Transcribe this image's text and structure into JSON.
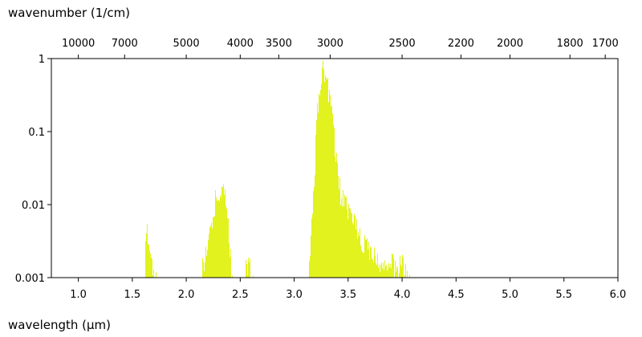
{
  "chart_data": {
    "type": "bar",
    "x_axis": {
      "label": "wavelength (µm)",
      "range": [
        0.75,
        6.0
      ],
      "ticks": [
        1.0,
        1.5,
        2.0,
        2.5,
        3.0,
        3.5,
        4.0,
        4.5,
        5.0,
        5.5,
        6.0
      ],
      "tick_labels": [
        "1.0",
        "1.5",
        "2.0",
        "2.5",
        "3.0",
        "3.5",
        "4.0",
        "4.5",
        "5.0",
        "5.5",
        "6.0"
      ]
    },
    "x2_axis": {
      "label": "wavenumber (1/cm)",
      "scale": "reciprocal",
      "ticks": [
        10000,
        7000,
        5000,
        4000,
        3500,
        3000,
        2500,
        2200,
        2000,
        1800,
        1700
      ],
      "tick_labels": [
        "10000",
        "7000",
        "5000",
        "4000",
        "3500",
        "3000",
        "2500",
        "2200",
        "2000",
        "1800",
        "1700"
      ]
    },
    "y_axis": {
      "scale": "log",
      "range": [
        0.001,
        1
      ],
      "ticks": [
        0.001,
        0.01,
        0.1,
        1
      ],
      "tick_labels": [
        "0.001",
        "0.01",
        "0.1",
        "1"
      ]
    },
    "colors": {
      "bars": "#e2f21e",
      "axes": "#000000"
    },
    "grid": false,
    "series": [
      {
        "bands": [
          {
            "x": [
              1.62,
              1.72
            ],
            "points": [
              [
                1.625,
                0.0045
              ],
              [
                1.635,
                0.006
              ],
              [
                1.645,
                0.0065
              ],
              [
                1.655,
                0.005
              ],
              [
                1.665,
                0.0035
              ],
              [
                1.675,
                0.0022
              ],
              [
                1.69,
                0.0015
              ],
              [
                1.71,
                0.0012
              ]
            ]
          },
          {
            "x": [
              2.15,
              2.42
            ],
            "points": [
              [
                2.16,
                0.0022
              ],
              [
                2.18,
                0.0035
              ],
              [
                2.2,
                0.0048
              ],
              [
                2.22,
                0.0065
              ],
              [
                2.24,
                0.009
              ],
              [
                2.26,
                0.014
              ],
              [
                2.28,
                0.02
              ],
              [
                2.3,
                0.022
              ],
              [
                2.32,
                0.025
              ],
              [
                2.34,
                0.021
              ],
              [
                2.36,
                0.017
              ],
              [
                2.38,
                0.009
              ],
              [
                2.4,
                0.004
              ],
              [
                2.42,
                0.0015
              ]
            ]
          },
          {
            "x": [
              2.55,
              2.62
            ],
            "points": [
              [
                2.555,
                0.0018
              ],
              [
                2.57,
                0.0026
              ],
              [
                2.585,
                0.0022
              ],
              [
                2.6,
                0.0014
              ],
              [
                2.615,
                0.0011
              ]
            ]
          },
          {
            "x": [
              3.12,
              4.08
            ],
            "points": [
              [
                3.13,
                0.0016
              ],
              [
                3.15,
                0.004
              ],
              [
                3.17,
                0.012
              ],
              [
                3.19,
                0.06
              ],
              [
                3.21,
                0.25
              ],
              [
                3.23,
                0.6
              ],
              [
                3.25,
                0.85
              ],
              [
                3.27,
                1.0
              ],
              [
                3.29,
                0.75
              ],
              [
                3.31,
                0.55
              ],
              [
                3.33,
                0.38
              ],
              [
                3.35,
                0.22
              ],
              [
                3.37,
                0.12
              ],
              [
                3.39,
                0.06
              ],
              [
                3.41,
                0.03
              ],
              [
                3.43,
                0.02
              ],
              [
                3.45,
                0.016
              ],
              [
                3.47,
                0.014
              ],
              [
                3.5,
                0.011
              ],
              [
                3.53,
                0.01
              ],
              [
                3.56,
                0.008
              ],
              [
                3.6,
                0.005
              ],
              [
                3.65,
                0.004
              ],
              [
                3.7,
                0.003
              ],
              [
                3.75,
                0.0025
              ],
              [
                3.8,
                0.002
              ],
              [
                3.85,
                0.0022
              ],
              [
                3.9,
                0.0025
              ],
              [
                3.95,
                0.0018
              ],
              [
                4.0,
                0.0022
              ],
              [
                4.05,
                0.0013
              ]
            ]
          }
        ]
      }
    ]
  }
}
